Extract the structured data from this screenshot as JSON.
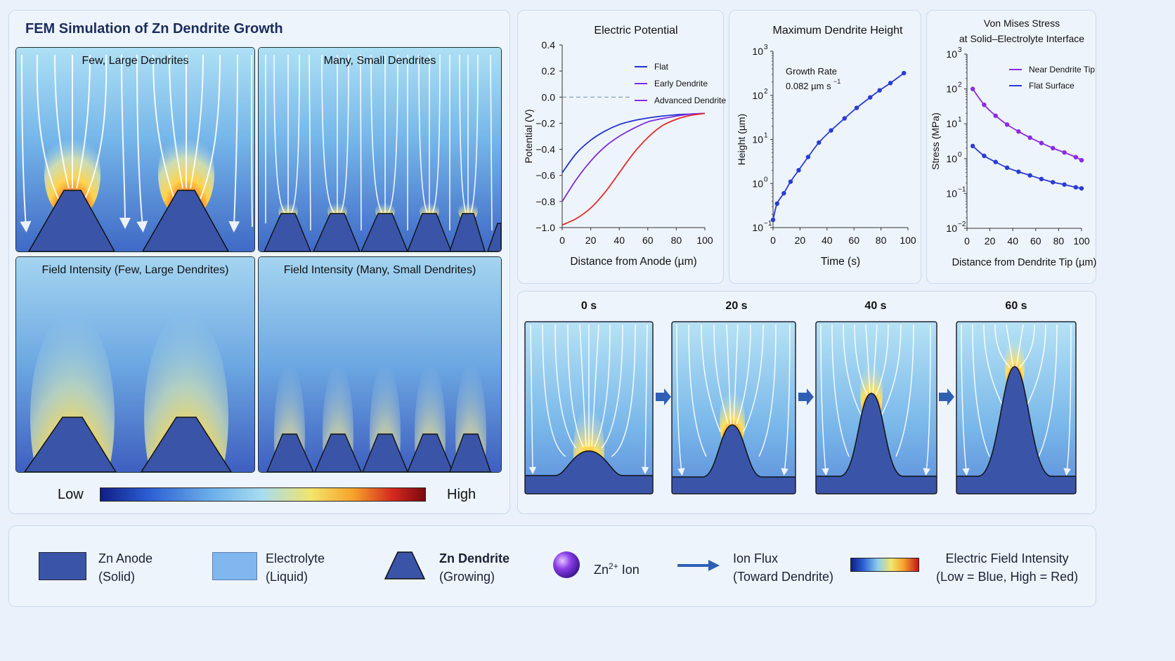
{
  "title": "FEM Simulation of Zn Dendrite Growth",
  "sims": {
    "few_flow": "Few, Large Dendrites",
    "many_flow": "Many, Small Dendrites",
    "few_field": "Field Intensity (Few, Large Dendrites)",
    "many_field": "Field Intensity (Many, Small Dendrites)"
  },
  "colorbar": {
    "low": "Low",
    "high": "High"
  },
  "time_steps": [
    "0 s",
    "20 s",
    "40 s",
    "60 s"
  ],
  "legend": {
    "anode": {
      "line1": "Zn Anode",
      "line2": "(Solid)"
    },
    "electrolyte": {
      "line1": "Electrolyte",
      "line2": "(Liquid)"
    },
    "dendrite": {
      "line1": "Zn Dendrite",
      "line2": "(Growing)"
    },
    "ion": {
      "base": "Zn",
      "sup": "2+",
      "suffix": " Ion"
    },
    "flux": {
      "line1": "Ion Flux",
      "line2": "(Toward Dendrite)"
    },
    "field": {
      "line1": "Electric Field Intensity",
      "line2": "(Low = Blue, High = Red)"
    }
  },
  "chart_data": [
    {
      "type": "line",
      "title": "Electric Potential",
      "xlabel": "Distance from Anode (µm)",
      "ylabel": "Potential (V)",
      "xlim": [
        0,
        100
      ],
      "ylim": [
        -1.0,
        0.4
      ],
      "xticks": [
        "0",
        "20",
        "40",
        "60",
        "80",
        "100"
      ],
      "yticks": [
        "0.4",
        "0.2",
        "0.0",
        "−0.2",
        "−0.4",
        "−0.6",
        "−0.8",
        "−1.0"
      ],
      "reference_line": 0.0,
      "legend_position": "top-right",
      "x": [
        0,
        10,
        20,
        30,
        40,
        50,
        60,
        70,
        80,
        90,
        100
      ],
      "series": [
        {
          "name": "Flat",
          "color": "#2233cc",
          "values": [
            -0.58,
            -0.43,
            -0.33,
            -0.26,
            -0.21,
            -0.18,
            -0.16,
            -0.145,
            -0.135,
            -0.13,
            -0.125
          ]
        },
        {
          "name": "Early Dendrite",
          "color": "#7a2be0",
          "values": [
            -0.8,
            -0.63,
            -0.49,
            -0.38,
            -0.3,
            -0.24,
            -0.19,
            -0.165,
            -0.145,
            -0.13,
            -0.125
          ]
        },
        {
          "name": "Advanced Dendrite",
          "color": "#8a2be2",
          "line_color": "#e42a2a",
          "values": [
            -0.98,
            -0.93,
            -0.85,
            -0.73,
            -0.58,
            -0.43,
            -0.31,
            -0.22,
            -0.17,
            -0.14,
            -0.125
          ]
        }
      ]
    },
    {
      "type": "line",
      "title": "Maximum Dendrite Height",
      "xlabel": "Time (s)",
      "ylabel": "Height (µm)",
      "yscale": "log",
      "xlim": [
        0,
        100
      ],
      "ylim": [
        0.1,
        1000
      ],
      "xticks": [
        "0",
        "20",
        "40",
        "60",
        "80",
        "100"
      ],
      "annotation": {
        "line1": "Growth Rate",
        "line2": "0.082 µm s",
        "sup": "−1"
      },
      "x": [
        0,
        3,
        8,
        13,
        19,
        26,
        34,
        43,
        53,
        62,
        72,
        79,
        87,
        97
      ],
      "series": [
        {
          "name": "",
          "color": "#2a3bd6",
          "values": [
            0.15,
            0.35,
            0.6,
            1.1,
            2.0,
            4.0,
            8.5,
            16,
            30,
            52,
            90,
            130,
            190,
            320
          ]
        }
      ]
    },
    {
      "type": "line",
      "title": "Von Mises Stress",
      "subtitle": "at Solid–Electrolyte Interface",
      "xlabel": "Distance from Dendrite Tip (µm)",
      "ylabel": "Stress (MPa)",
      "yscale": "log",
      "xlim": [
        0,
        100
      ],
      "ylim": [
        0.01,
        1000
      ],
      "xticks": [
        "0",
        "20",
        "40",
        "60",
        "80",
        "100"
      ],
      "legend_position": "top-right",
      "x": [
        5,
        15,
        25,
        35,
        45,
        55,
        65,
        75,
        85,
        95,
        100
      ],
      "series": [
        {
          "name": "Near Dendrite Tip",
          "color": "#8a2be2",
          "values": [
            100,
            35,
            17,
            9.5,
            6.0,
            4.0,
            2.8,
            2.0,
            1.5,
            1.1,
            0.9
          ]
        },
        {
          "name": "Flat Surface",
          "color": "#2a3bd6",
          "values": [
            2.3,
            1.2,
            0.8,
            0.55,
            0.42,
            0.33,
            0.26,
            0.21,
            0.18,
            0.15,
            0.14
          ]
        }
      ]
    }
  ]
}
